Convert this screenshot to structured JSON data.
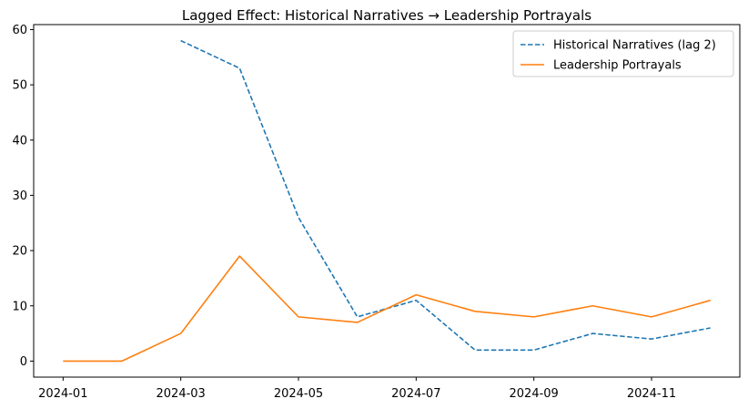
{
  "chart_data": {
    "type": "line",
    "title": "Lagged Effect: Historical Narratives → Leadership Portrayals",
    "xlabel": "",
    "ylabel": "",
    "x": [
      "2024-01",
      "2024-02",
      "2024-03",
      "2024-04",
      "2024-05",
      "2024-06",
      "2024-07",
      "2024-08",
      "2024-09",
      "2024-10",
      "2024-11",
      "2024-12"
    ],
    "x_tick_labels": [
      "2024-01",
      "2024-03",
      "2024-05",
      "2024-07",
      "2024-09",
      "2024-11"
    ],
    "y_ticks": [
      0,
      10,
      20,
      30,
      40,
      50,
      60
    ],
    "ylim": [
      -2.9,
      60.9
    ],
    "grid": false,
    "legend_position": "top-right",
    "series": [
      {
        "name": "Historical Narratives (lag 2)",
        "color": "#1f77b4",
        "style": "dashed",
        "values": [
          null,
          null,
          58,
          53,
          26,
          8,
          11,
          2,
          2,
          5,
          4,
          6
        ]
      },
      {
        "name": "Leadership Portrayals",
        "color": "#ff7f0e",
        "style": "solid",
        "values": [
          0,
          0,
          5,
          19,
          8,
          7,
          12,
          9,
          8,
          10,
          8,
          11
        ]
      }
    ]
  }
}
